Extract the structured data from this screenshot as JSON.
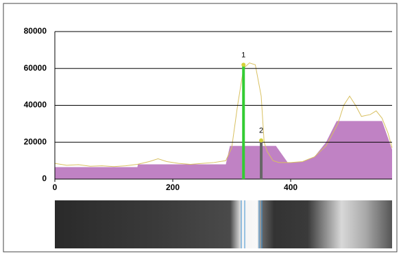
{
  "chart_data": {
    "type": "area",
    "xlim": [
      0,
      572
    ],
    "xticks": [
      0,
      200,
      400
    ],
    "ylim": [
      0,
      80000
    ],
    "yticks": [
      0,
      20000,
      40000,
      60000,
      80000
    ],
    "grid": true,
    "series": [
      {
        "kind": "area",
        "color": "#c082c4",
        "x": [
          0,
          140,
          141,
          290,
          297,
          375,
          395,
          420,
          440,
          460,
          478,
          555,
          572
        ],
        "values": [
          6500,
          6500,
          8000,
          8000,
          18000,
          18000,
          9000,
          9500,
          12000,
          20000,
          31500,
          31500,
          16000
        ]
      },
      {
        "kind": "line",
        "color": "#d8c060",
        "x": [
          0,
          20,
          40,
          60,
          80,
          100,
          120,
          140,
          160,
          175,
          190,
          210,
          230,
          250,
          270,
          290,
          300,
          310,
          320,
          330,
          340,
          350,
          355,
          360,
          370,
          380,
          400,
          420,
          440,
          460,
          480,
          490,
          500,
          510,
          520,
          535,
          545,
          555,
          565,
          572
        ],
        "values": [
          8500,
          7500,
          7800,
          7000,
          7200,
          6800,
          7200,
          8000,
          9500,
          11000,
          9500,
          8500,
          8000,
          8500,
          9000,
          10000,
          17000,
          40000,
          60000,
          63000,
          62000,
          45000,
          20000,
          15000,
          10000,
          9000,
          9000,
          9500,
          12000,
          18000,
          30000,
          40000,
          45000,
          40000,
          34000,
          35000,
          37000,
          33000,
          25000,
          17000
        ]
      }
    ],
    "peaks": [
      {
        "label": "1",
        "x": 320,
        "value": 62000,
        "color": "#33cc33"
      },
      {
        "label": "2",
        "x": 350,
        "value": 21000,
        "color": "#666666"
      }
    ]
  }
}
